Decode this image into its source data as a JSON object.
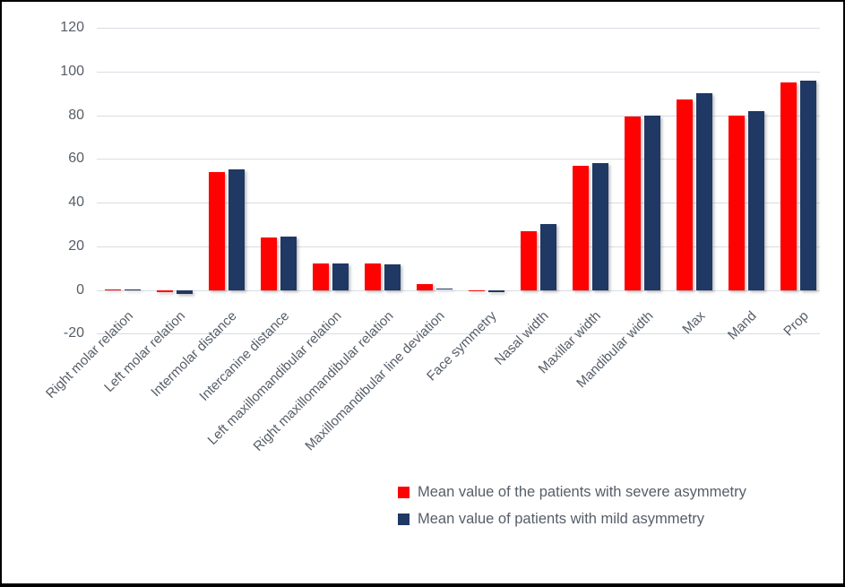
{
  "figure": {
    "background": "#ffffff",
    "border_color": "#000000",
    "gridline_color": "#d8dce2",
    "text_color": "#565e68"
  },
  "chart_data": {
    "type": "bar",
    "title": "",
    "xlabel": "",
    "ylabel": "",
    "ylim": [
      -20,
      120
    ],
    "ytick_interval": 20,
    "yticks": [
      120,
      100,
      80,
      60,
      40,
      20,
      0,
      -20
    ],
    "grid": true,
    "legend_position": "bottom-right",
    "categories": [
      "Right molar relation",
      "Left molar relation",
      "Intermolar distance",
      "Intercanine distance",
      "Left maxillomandibular relation",
      "Right maxillomandibular relation",
      "Maxillomandibular line deviation",
      "Face symmetry",
      "Nasal width",
      "Maxillar width",
      "Mandibular width",
      "Max",
      "Mand",
      "Prop"
    ],
    "series": [
      {
        "name": "Mean value of the patients with severe asymmetry",
        "color": "#fe0202",
        "values": [
          0.2,
          -1,
          54,
          24,
          12,
          12,
          2.5,
          -0.1,
          27,
          57,
          79.5,
          87,
          80,
          95
        ]
      },
      {
        "name": "Mean value of patients with mild asymmetry",
        "color": "#1f3864",
        "values": [
          0.2,
          -2,
          55,
          24.5,
          12,
          11.5,
          0.7,
          -1,
          30,
          58,
          80,
          90,
          82,
          96
        ]
      }
    ]
  }
}
